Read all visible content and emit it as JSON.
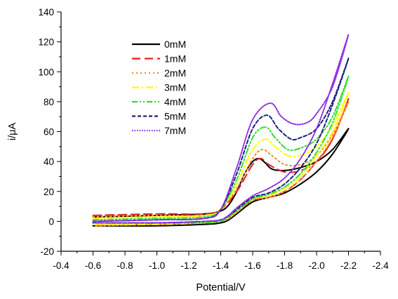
{
  "chart_data": {
    "type": "line",
    "xlabel": "Potential/V",
    "ylabel": "i/μA",
    "xlim": [
      -0.4,
      -2.4
    ],
    "ylim": [
      -20,
      140
    ],
    "xticks": [
      -0.4,
      -0.6,
      -0.8,
      -1.0,
      -1.2,
      -1.4,
      -1.6,
      -1.8,
      -2.0,
      -2.2,
      -2.4
    ],
    "xtick_labels": [
      "-0.4",
      "-0.6",
      "-0.8",
      "-1.0",
      "-1.2",
      "-1.4",
      "-1.6",
      "-1.8",
      "-2.0",
      "-2.2",
      "-2.4"
    ],
    "yticks": [
      -20,
      0,
      20,
      40,
      60,
      80,
      100,
      120,
      140
    ],
    "ytick_labels": [
      "-20",
      "0",
      "20",
      "40",
      "60",
      "80",
      "100",
      "120",
      "140"
    ],
    "legend_position": "top-left",
    "series": [
      {
        "name": "0mM",
        "color": "#000000",
        "dash": "solid",
        "x": [
          -0.6,
          -1.0,
          -1.3,
          -1.4,
          -1.45,
          -1.5,
          -1.55,
          -1.6,
          -1.64,
          -1.68,
          -1.72,
          -1.8,
          -1.9,
          -2.0,
          -2.1,
          -2.2,
          -2.1,
          -2.0,
          -1.9,
          -1.8,
          -1.7,
          -1.6,
          -1.5,
          -1.45,
          -1.4,
          -1.3,
          -1.0,
          -0.6
        ],
        "y": [
          3,
          4,
          5,
          7,
          11,
          20,
          32,
          40,
          42,
          39,
          35,
          34,
          36,
          40,
          48,
          62,
          45,
          33,
          25,
          19,
          16,
          13,
          5,
          1,
          -1,
          -2,
          -3,
          -3
        ]
      },
      {
        "name": "1mM",
        "color": "#e02020",
        "dash": "long-dash",
        "x": [
          -0.6,
          -1.0,
          -1.3,
          -1.4,
          -1.5,
          -1.6,
          -1.65,
          -1.7,
          -1.8,
          -1.9,
          -2.0,
          -2.1,
          -2.2,
          -2.1,
          -2.0,
          -1.9,
          -1.8,
          -1.7,
          -1.6,
          -1.5,
          -1.45,
          -1.4,
          -1.3,
          -1.0,
          -0.6
        ],
        "y": [
          4,
          5,
          5,
          8,
          20,
          38,
          42,
          38,
          33,
          34,
          40,
          55,
          82,
          55,
          40,
          28,
          20,
          16,
          14,
          7,
          3,
          0,
          -1,
          -2,
          -3
        ]
      },
      {
        "name": "2mM",
        "color": "#ff8c1a",
        "dash": "dot",
        "x": [
          -0.6,
          -1.0,
          -1.3,
          -1.4,
          -1.5,
          -1.6,
          -1.66,
          -1.72,
          -1.8,
          -1.9,
          -2.0,
          -2.1,
          -2.2,
          -2.1,
          -2.0,
          -1.9,
          -1.8,
          -1.7,
          -1.6,
          -1.5,
          -1.45,
          -1.4,
          -1.3,
          -1.0,
          -0.6
        ],
        "y": [
          3,
          4,
          4,
          8,
          22,
          42,
          48,
          44,
          38,
          38,
          44,
          58,
          80,
          56,
          40,
          28,
          20,
          16,
          14,
          6,
          2,
          0,
          -1,
          -2,
          -3
        ]
      },
      {
        "name": "3mM",
        "color": "#ffff00",
        "dash": "dash-dot",
        "x": [
          -0.6,
          -1.0,
          -1.3,
          -1.4,
          -1.5,
          -1.6,
          -1.68,
          -1.74,
          -1.82,
          -1.9,
          -2.0,
          -2.1,
          -2.2,
          -2.1,
          -2.0,
          -1.9,
          -1.8,
          -1.7,
          -1.6,
          -1.5,
          -1.45,
          -1.4,
          -1.3,
          -1.0,
          -0.6
        ],
        "y": [
          2,
          3,
          4,
          8,
          25,
          48,
          55,
          50,
          44,
          44,
          50,
          64,
          86,
          60,
          44,
          30,
          22,
          17,
          15,
          7,
          3,
          0,
          -1,
          -2,
          -2
        ]
      },
      {
        "name": "4mM",
        "color": "#33dd33",
        "dash": "dash-dot-dot",
        "x": [
          -0.6,
          -1.0,
          -1.3,
          -1.4,
          -1.5,
          -1.6,
          -1.68,
          -1.74,
          -1.82,
          -1.9,
          -2.0,
          -2.1,
          -2.2,
          -2.1,
          -2.0,
          -1.9,
          -1.8,
          -1.7,
          -1.6,
          -1.5,
          -1.45,
          -1.4,
          -1.3,
          -1.0,
          -0.6
        ],
        "y": [
          1,
          2,
          3,
          8,
          28,
          56,
          63,
          56,
          48,
          49,
          55,
          70,
          97,
          66,
          46,
          32,
          23,
          18,
          15,
          7,
          3,
          0,
          -1,
          -1,
          -1
        ]
      },
      {
        "name": "5mM",
        "color": "#1a237e",
        "dash": "short-dash",
        "x": [
          -0.6,
          -1.0,
          -1.3,
          -1.4,
          -1.5,
          -1.6,
          -1.69,
          -1.76,
          -1.84,
          -1.9,
          -2.0,
          -2.1,
          -2.2,
          -2.1,
          -2.0,
          -1.9,
          -1.8,
          -1.7,
          -1.6,
          -1.5,
          -1.45,
          -1.4,
          -1.3,
          -1.0,
          -0.6
        ],
        "y": [
          0,
          1,
          2,
          8,
          32,
          62,
          71,
          62,
          55,
          56,
          62,
          80,
          109,
          78,
          52,
          36,
          25,
          19,
          16,
          8,
          4,
          1,
          0,
          -1,
          -1
        ]
      },
      {
        "name": "7mM",
        "color": "#8a2be2",
        "dash": "dense-dot",
        "x": [
          -0.6,
          -1.0,
          -1.3,
          -1.4,
          -1.5,
          -1.6,
          -1.71,
          -1.78,
          -1.86,
          -1.94,
          -2.0,
          -2.1,
          -2.2,
          -2.1,
          -2.0,
          -1.9,
          -1.8,
          -1.7,
          -1.6,
          -1.5,
          -1.45,
          -1.4,
          -1.3,
          -1.0,
          -0.6
        ],
        "y": [
          0,
          1,
          2,
          8,
          36,
          68,
          79,
          70,
          65,
          66,
          72,
          90,
          125,
          92,
          62,
          42,
          29,
          22,
          17,
          9,
          4,
          1,
          0,
          -1,
          -1
        ]
      }
    ]
  }
}
